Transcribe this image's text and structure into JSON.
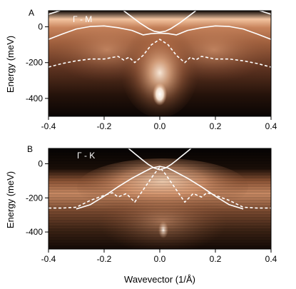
{
  "chart_data": [
    {
      "type": "heatmap",
      "panel": "A",
      "inset_label": "Γ - M",
      "xlabel": "",
      "ylabel": "Energy (meV)",
      "xlim": [
        -0.4,
        0.4
      ],
      "ylim": [
        -500,
        90
      ],
      "xticks": [
        "-0.4",
        "-0.2",
        "0.0",
        "0.2",
        "0.4"
      ],
      "yticks": [
        "0",
        "-200",
        "-400"
      ],
      "colormap": [
        "#000000",
        "#3a2014",
        "#8a5434",
        "#d99a70",
        "#f4c8a4",
        "#fff4e8"
      ],
      "overlays": [
        {
          "style": "solid",
          "x": [
            -0.4,
            -0.35,
            -0.3,
            -0.25,
            -0.2,
            -0.15,
            -0.1,
            -0.06,
            -0.03,
            0.0,
            0.03,
            0.06,
            0.1,
            0.15,
            0.2,
            0.25,
            0.3,
            0.35,
            0.4
          ],
          "y": [
            -70,
            -40,
            -12,
            2,
            5,
            -5,
            -20,
            -45,
            -38,
            -35,
            -38,
            -45,
            -20,
            -5,
            5,
            2,
            -12,
            -40,
            -70
          ]
        },
        {
          "style": "solid",
          "x": [
            -0.13,
            -0.1,
            -0.07,
            -0.04,
            -0.02,
            0.0,
            0.02,
            0.04,
            0.07,
            0.1,
            0.13
          ],
          "y": [
            90,
            55,
            20,
            -10,
            -25,
            -30,
            -25,
            -10,
            20,
            55,
            90
          ]
        },
        {
          "style": "solid",
          "x": [
            -0.4,
            -0.37,
            -0.34
          ],
          "y": [
            70,
            85,
            100
          ]
        },
        {
          "style": "solid",
          "x": [
            0.34,
            0.37,
            0.4
          ],
          "y": [
            100,
            85,
            70
          ]
        },
        {
          "style": "dashed",
          "x": [
            -0.4,
            -0.35,
            -0.3,
            -0.25,
            -0.2,
            -0.15,
            -0.13,
            -0.11,
            -0.09,
            -0.06,
            -0.03,
            0.0,
            0.03,
            0.06,
            0.09,
            0.11,
            0.13,
            0.15,
            0.2,
            0.25,
            0.3,
            0.35,
            0.4
          ],
          "y": [
            -225,
            -205,
            -190,
            -180,
            -180,
            -165,
            -185,
            -170,
            -200,
            -160,
            -100,
            -70,
            -100,
            -160,
            -200,
            -170,
            -185,
            -165,
            -180,
            -180,
            -190,
            -205,
            -225
          ]
        }
      ]
    },
    {
      "type": "heatmap",
      "panel": "B",
      "inset_label": "Γ - K",
      "xlabel": "Wavevector (1/Å)",
      "ylabel": "Energy (meV)",
      "xlim": [
        -0.4,
        0.4
      ],
      "ylim": [
        -500,
        90
      ],
      "xticks": [
        "-0.4",
        "-0.2",
        "0.0",
        "0.2",
        "0.4"
      ],
      "yticks": [
        "0",
        "-200",
        "-400"
      ],
      "colormap": [
        "#000000",
        "#3a2014",
        "#8a5434",
        "#d99a70",
        "#f4c8a4",
        "#fff4e8"
      ],
      "overlays": [
        {
          "style": "solid",
          "x": [
            -0.3,
            -0.25,
            -0.2,
            -0.15,
            -0.1,
            -0.06,
            -0.03,
            0.0,
            0.03,
            0.06,
            0.1,
            0.15,
            0.2,
            0.25,
            0.3
          ],
          "y": [
            -265,
            -240,
            -190,
            -135,
            -85,
            -50,
            -25,
            -15,
            -25,
            -50,
            -85,
            -135,
            -190,
            -240,
            -265
          ]
        },
        {
          "style": "solid",
          "x": [
            -0.12,
            -0.09,
            -0.06,
            -0.04,
            -0.02,
            0.0,
            0.02,
            0.04,
            0.06,
            0.09,
            0.12
          ],
          "y": [
            100,
            60,
            20,
            -5,
            -25,
            -35,
            -25,
            -5,
            20,
            60,
            100
          ]
        },
        {
          "style": "dashed",
          "x": [
            -0.4,
            -0.35,
            -0.3,
            -0.25,
            -0.2,
            -0.17,
            -0.15,
            -0.12,
            -0.09,
            -0.05,
            -0.02,
            0.0,
            0.02,
            0.05,
            0.09,
            0.12,
            0.15,
            0.17,
            0.2,
            0.25,
            0.3,
            0.35,
            0.4
          ],
          "y": [
            -260,
            -260,
            -255,
            -215,
            -185,
            -170,
            -195,
            -175,
            -225,
            -130,
            -60,
            -20,
            -60,
            -130,
            -225,
            -175,
            -195,
            -170,
            -185,
            -215,
            -255,
            -260,
            -260
          ]
        }
      ]
    }
  ]
}
